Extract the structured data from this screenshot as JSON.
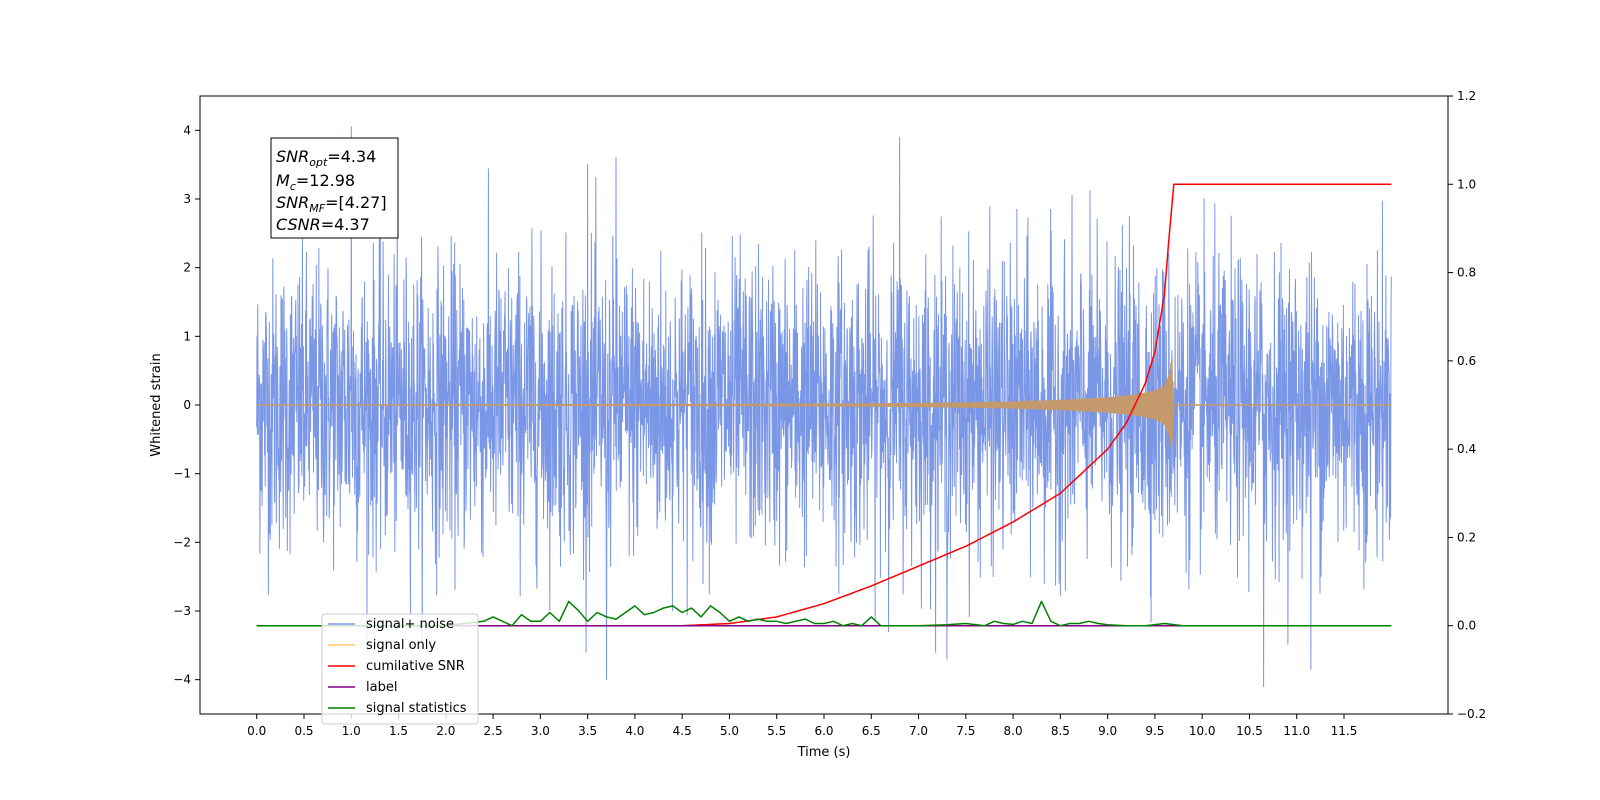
{
  "chart_data": {
    "type": "line",
    "xlabel": "Time (s)",
    "ylabel": "Whitened strain",
    "xlim": [
      -0.6,
      12.6
    ],
    "ylim": [
      -4.5,
      4.5
    ],
    "y2lim": [
      -0.2,
      1.2
    ],
    "x_ticks": [
      0.0,
      0.5,
      1.0,
      1.5,
      2.0,
      2.5,
      3.0,
      3.5,
      4.0,
      4.5,
      5.0,
      5.5,
      6.0,
      6.5,
      7.0,
      7.5,
      8.0,
      8.5,
      9.0,
      9.5,
      10.0,
      10.5,
      11.0,
      11.5
    ],
    "x_tick_labels": [
      "0.0",
      "0.5",
      "1.0",
      "1.5",
      "2.0",
      "2.5",
      "3.0",
      "3.5",
      "4.0",
      "4.5",
      "5.0",
      "5.5",
      "6.0",
      "6.5",
      "7.0",
      "7.5",
      "8.0",
      "8.5",
      "9.0",
      "9.5",
      "10.0",
      "10.5",
      "11.0",
      "11.5"
    ],
    "y_ticks": [
      -4,
      -3,
      -2,
      -1,
      0,
      1,
      2,
      3,
      4
    ],
    "y_tick_labels": [
      "−4",
      "−3",
      "−2",
      "−1",
      "0",
      "1",
      "2",
      "3",
      "4"
    ],
    "y2_ticks": [
      -0.2,
      0.0,
      0.2,
      0.4,
      0.6,
      0.8,
      1.0,
      1.2
    ],
    "y2_tick_labels": [
      "−0.2",
      "0.0",
      "0.2",
      "0.4",
      "0.6",
      "0.8",
      "1.0",
      "1.2"
    ],
    "grid": false,
    "legend_placement": "lower-left",
    "annotation": {
      "lines": [
        {
          "base": "SNR",
          "sub": "opt",
          "rest": "=4.34"
        },
        {
          "base": "M",
          "sub": "c",
          "rest": "=12.98"
        },
        {
          "base": "SNR",
          "sub": "MF",
          "rest": "=[4.27]"
        },
        {
          "base": "CSNR",
          "sub": "",
          "rest": "=4.37"
        }
      ]
    },
    "series": [
      {
        "name": "signal+ noise",
        "color": "#7a96e6",
        "axis": "left",
        "description_values": "noise band roughly between -2.3 and 2.3 with spikes up to about 4.0 and down to about -4.1",
        "x_range": [
          0.0,
          12.0
        ],
        "typical_amplitude": 2.2,
        "peaks": [
          {
            "x": 1.0,
            "y": 4.05
          },
          {
            "x": 6.8,
            "y": 3.9
          },
          {
            "x": 3.5,
            "y": 3.5
          },
          {
            "x": 3.8,
            "y": 3.6
          },
          {
            "x": 3.7,
            "y": -4.0
          },
          {
            "x": 10.65,
            "y": -4.1
          },
          {
            "x": 11.15,
            "y": -3.85
          },
          {
            "x": 7.3,
            "y": -3.7
          }
        ]
      },
      {
        "name": "signal only",
        "color": "#ffc870",
        "axis": "left",
        "x": [
          0.0,
          3.0,
          5.0,
          6.5,
          7.5,
          8.0,
          8.5,
          9.0,
          9.3,
          9.5,
          9.6,
          9.65,
          9.68,
          9.7,
          12.0
        ],
        "envelope": [
          0.0,
          0.005,
          0.01,
          0.02,
          0.04,
          0.06,
          0.09,
          0.14,
          0.2,
          0.28,
          0.38,
          0.6,
          0.95,
          0.0,
          0.0
        ]
      },
      {
        "name": "cumilative SNR",
        "color": "#ff0000",
        "axis": "right",
        "x": [
          0.0,
          4.5,
          5.0,
          5.5,
          6.0,
          6.5,
          7.0,
          7.5,
          8.0,
          8.5,
          9.0,
          9.2,
          9.4,
          9.5,
          9.6,
          9.65,
          9.7,
          12.0
        ],
        "values": [
          0.0,
          0.0,
          0.005,
          0.02,
          0.05,
          0.09,
          0.135,
          0.18,
          0.235,
          0.3,
          0.4,
          0.46,
          0.55,
          0.62,
          0.75,
          0.88,
          1.0,
          1.0
        ]
      },
      {
        "name": "label",
        "color": "#800080",
        "axis": "right",
        "x": [
          0.0,
          12.0
        ],
        "values": [
          0.0,
          0.0
        ]
      },
      {
        "name": "signal statistics",
        "color": "#008000",
        "axis": "right",
        "x": [
          0.0,
          2.0,
          2.2,
          2.4,
          2.5,
          2.6,
          2.7,
          2.8,
          2.9,
          3.0,
          3.1,
          3.2,
          3.3,
          3.4,
          3.5,
          3.6,
          3.7,
          3.8,
          3.9,
          4.0,
          4.1,
          4.2,
          4.3,
          4.4,
          4.5,
          4.6,
          4.7,
          4.8,
          4.9,
          5.0,
          5.1,
          5.2,
          5.3,
          5.4,
          5.5,
          5.6,
          5.7,
          5.8,
          5.9,
          6.0,
          6.1,
          6.2,
          6.3,
          6.4,
          6.5,
          6.6,
          6.7,
          7.0,
          7.3,
          7.5,
          7.7,
          7.8,
          7.9,
          8.0,
          8.1,
          8.2,
          8.3,
          8.4,
          8.5,
          8.6,
          8.7,
          8.8,
          8.9,
          9.0,
          9.2,
          9.4,
          9.6,
          9.8,
          10.0,
          11.0,
          12.0
        ],
        "values": [
          0.0,
          0.0,
          0.005,
          0.01,
          0.02,
          0.01,
          0.0,
          0.025,
          0.01,
          0.01,
          0.03,
          0.01,
          0.055,
          0.035,
          0.01,
          0.03,
          0.02,
          0.015,
          0.03,
          0.045,
          0.025,
          0.03,
          0.04,
          0.045,
          0.03,
          0.04,
          0.02,
          0.045,
          0.03,
          0.01,
          0.02,
          0.01,
          0.015,
          0.01,
          0.01,
          0.005,
          0.01,
          0.015,
          0.005,
          0.005,
          0.01,
          0.0,
          0.005,
          0.0,
          0.02,
          0.0,
          0.0,
          0.0,
          0.002,
          0.005,
          0.0,
          0.01,
          0.005,
          0.003,
          0.01,
          0.005,
          0.055,
          0.01,
          0.0,
          0.005,
          0.005,
          0.01,
          0.005,
          0.002,
          0.0,
          0.0,
          0.005,
          0.0,
          0.0,
          0.0,
          0.0
        ]
      }
    ]
  }
}
